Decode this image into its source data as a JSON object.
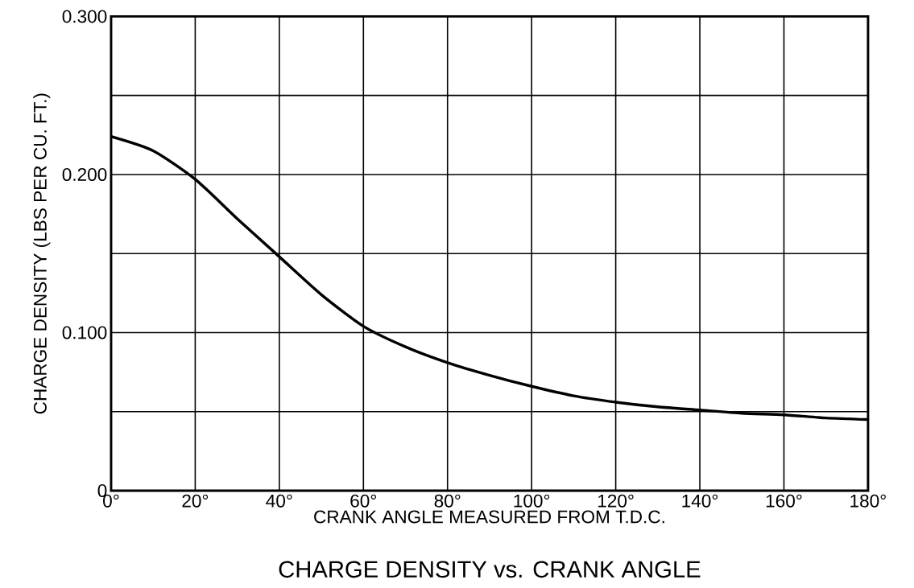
{
  "chart_data": {
    "type": "line",
    "title": "CHARGE DENSITY vs. CRANK ANGLE",
    "xlabel": "CRANK ANGLE MEASURED FROM T.D.C.",
    "ylabel": "CHARGE DENSITY (LBS PER CU. FT.)",
    "x": [
      0,
      10,
      20,
      30,
      40,
      50,
      60,
      70,
      80,
      90,
      100,
      110,
      120,
      130,
      140,
      150,
      160,
      170,
      180
    ],
    "values": [
      0.224,
      0.215,
      0.197,
      0.172,
      0.148,
      0.124,
      0.104,
      0.091,
      0.081,
      0.073,
      0.066,
      0.06,
      0.056,
      0.053,
      0.051,
      0.049,
      0.048,
      0.046,
      0.045
    ],
    "color": "#000000",
    "xlim": [
      0,
      180
    ],
    "ylim": [
      0,
      0.3
    ],
    "xticks": [
      {
        "value": 0,
        "label": "0°"
      },
      {
        "value": 20,
        "label": "20°"
      },
      {
        "value": 40,
        "label": "40°"
      },
      {
        "value": 60,
        "label": "60°"
      },
      {
        "value": 80,
        "label": "80°"
      },
      {
        "value": 100,
        "label": "100°"
      },
      {
        "value": 120,
        "label": "120°"
      },
      {
        "value": 140,
        "label": "140°"
      },
      {
        "value": 160,
        "label": "160°"
      },
      {
        "value": 180,
        "label": "180°"
      }
    ],
    "yticks": [
      {
        "value": 0,
        "label": "0"
      },
      {
        "value": 0.05,
        "label": null
      },
      {
        "value": 0.1,
        "label": "0.100"
      },
      {
        "value": 0.15,
        "label": null
      },
      {
        "value": 0.2,
        "label": "0.200"
      },
      {
        "value": 0.25,
        "label": null
      },
      {
        "value": 0.3,
        "label": "0.300"
      }
    ],
    "grid": true,
    "marker": "none",
    "line_style": "solid"
  }
}
